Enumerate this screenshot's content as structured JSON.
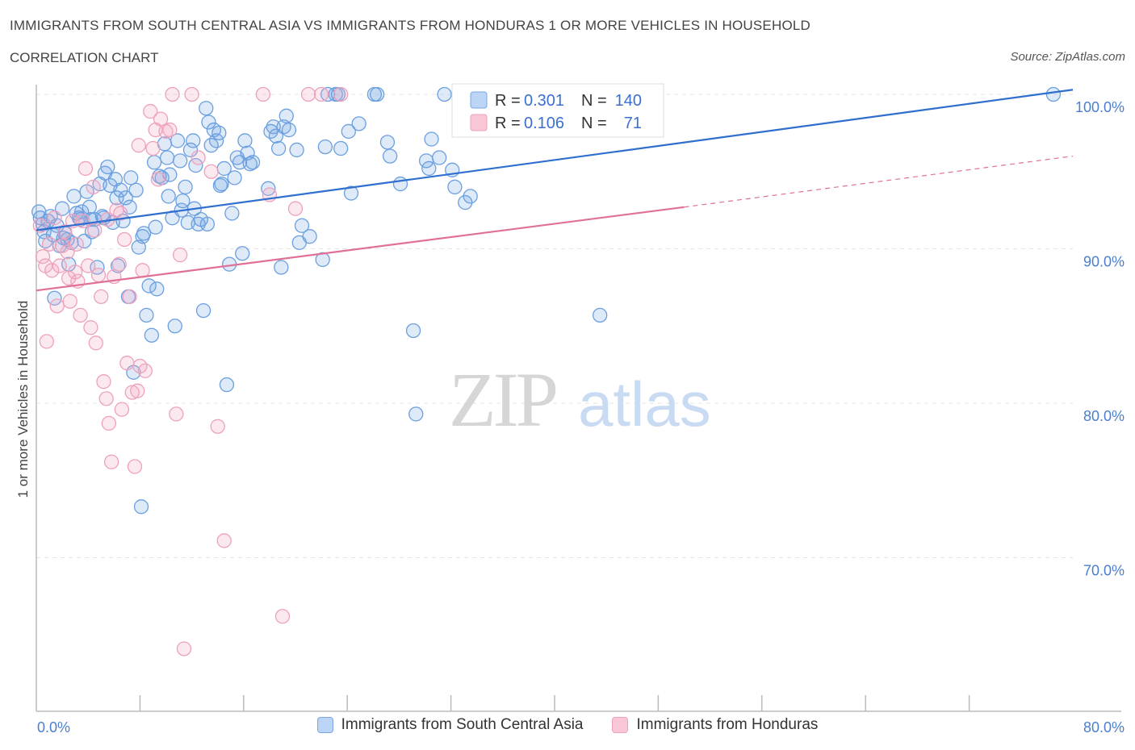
{
  "header": {
    "title": "IMMIGRANTS FROM SOUTH CENTRAL ASIA VS IMMIGRANTS FROM HONDURAS 1 OR MORE VEHICLES IN HOUSEHOLD",
    "subtitle": "CORRELATION CHART",
    "source": "Source: ZipAtlas.com"
  },
  "watermark": {
    "zip": "ZIP",
    "atlas": "atlas"
  },
  "stats": {
    "r_label": "R =",
    "n_label": "N =",
    "rows": [
      {
        "r": "0.301",
        "n": "140"
      },
      {
        "r": "0.106",
        "n": "71"
      }
    ]
  },
  "chart_data": {
    "type": "scatter",
    "ylabel": "1 or more Vehicles in Household",
    "xlim": [
      0,
      80
    ],
    "ylim": [
      60,
      100
    ],
    "x_tick_labels": [
      "0.0%",
      "80.0%"
    ],
    "y_ticks": [
      {
        "value": 100,
        "label": "100.0%"
      },
      {
        "value": 90,
        "label": "90.0%"
      },
      {
        "value": 80,
        "label": "80.0%"
      },
      {
        "value": 70,
        "label": "70.0%"
      }
    ],
    "grid": true,
    "legend_position": "bottom",
    "series": [
      {
        "name": "Immigrants from South Central Asia",
        "color": "#6b9fe0",
        "line_color": "#2f6fcf",
        "trend": {
          "x0": 0,
          "y0": 91.2,
          "x1": 80,
          "y1": 100.3
        },
        "points": [
          [
            0.2,
            92.4
          ],
          [
            0.3,
            92.0
          ],
          [
            0.5,
            91.6
          ],
          [
            0.7,
            90.5
          ],
          [
            0.9,
            91.8
          ],
          [
            1.1,
            92.1
          ],
          [
            1.3,
            90.9
          ],
          [
            1.4,
            86.8
          ],
          [
            1.6,
            91.5
          ],
          [
            1.8,
            90.2
          ],
          [
            2.0,
            92.6
          ],
          [
            2.2,
            91.0
          ],
          [
            2.4,
            90.6
          ],
          [
            2.5,
            89.0
          ],
          [
            2.7,
            90.4
          ],
          [
            2.9,
            93.4
          ],
          [
            3.1,
            92.3
          ],
          [
            3.3,
            92.0
          ],
          [
            3.5,
            92.4
          ],
          [
            3.7,
            90.5
          ],
          [
            3.9,
            93.7
          ],
          [
            4.1,
            92.7
          ],
          [
            4.3,
            91.1
          ],
          [
            4.5,
            91.9
          ],
          [
            4.7,
            88.8
          ],
          [
            4.9,
            94.2
          ],
          [
            5.1,
            92.1
          ],
          [
            5.3,
            94.9
          ],
          [
            5.5,
            95.3
          ],
          [
            5.7,
            94.1
          ],
          [
            5.9,
            91.7
          ],
          [
            6.1,
            94.5
          ],
          [
            6.3,
            88.9
          ],
          [
            6.5,
            93.8
          ],
          [
            6.7,
            91.8
          ],
          [
            6.9,
            93.3
          ],
          [
            7.1,
            86.9
          ],
          [
            7.3,
            94.6
          ],
          [
            7.5,
            82.0
          ],
          [
            7.7,
            93.8
          ],
          [
            7.9,
            90.1
          ],
          [
            8.1,
            73.3
          ],
          [
            8.3,
            91.0
          ],
          [
            8.5,
            85.7
          ],
          [
            8.7,
            87.6
          ],
          [
            8.9,
            84.4
          ],
          [
            9.1,
            95.6
          ],
          [
            9.3,
            87.4
          ],
          [
            9.5,
            94.7
          ],
          [
            9.7,
            94.6
          ],
          [
            9.9,
            96.8
          ],
          [
            10.1,
            95.9
          ],
          [
            10.3,
            94.8
          ],
          [
            10.5,
            92.0
          ],
          [
            10.7,
            85.0
          ],
          [
            10.9,
            97.0
          ],
          [
            11.1,
            95.7
          ],
          [
            11.3,
            93.1
          ],
          [
            11.5,
            94.0
          ],
          [
            11.7,
            91.7
          ],
          [
            11.9,
            96.4
          ],
          [
            12.1,
            97.0
          ],
          [
            12.3,
            95.4
          ],
          [
            12.5,
            91.6
          ],
          [
            12.7,
            91.9
          ],
          [
            12.9,
            86.0
          ],
          [
            13.1,
            99.1
          ],
          [
            13.3,
            98.2
          ],
          [
            13.5,
            96.7
          ],
          [
            13.7,
            97.7
          ],
          [
            13.9,
            97.0
          ],
          [
            14.1,
            97.5
          ],
          [
            14.3,
            94.2
          ],
          [
            14.5,
            95.2
          ],
          [
            14.7,
            81.2
          ],
          [
            14.9,
            89.0
          ],
          [
            15.1,
            92.3
          ],
          [
            15.3,
            94.6
          ],
          [
            15.5,
            95.9
          ],
          [
            15.7,
            95.6
          ],
          [
            15.9,
            89.7
          ],
          [
            16.1,
            97.0
          ],
          [
            16.3,
            96.2
          ],
          [
            16.5,
            95.5
          ],
          [
            16.7,
            95.6
          ],
          [
            17.9,
            93.9
          ],
          [
            18.1,
            97.6
          ],
          [
            18.3,
            97.9
          ],
          [
            18.5,
            97.3
          ],
          [
            18.7,
            96.5
          ],
          [
            18.9,
            88.8
          ],
          [
            19.1,
            97.9
          ],
          [
            19.3,
            98.6
          ],
          [
            19.5,
            97.7
          ],
          [
            20.1,
            96.4
          ],
          [
            20.3,
            90.4
          ],
          [
            20.5,
            91.5
          ],
          [
            21.1,
            90.8
          ],
          [
            22.1,
            89.3
          ],
          [
            22.3,
            96.6
          ],
          [
            22.5,
            100.0
          ],
          [
            23.1,
            100.0
          ],
          [
            23.3,
            100.0
          ],
          [
            23.5,
            96.5
          ],
          [
            24.1,
            97.6
          ],
          [
            24.3,
            93.6
          ],
          [
            26.1,
            100.0
          ],
          [
            26.3,
            100.0
          ],
          [
            27.1,
            96.9
          ],
          [
            27.3,
            96.0
          ],
          [
            28.1,
            94.2
          ],
          [
            29.1,
            84.7
          ],
          [
            29.3,
            79.3
          ],
          [
            30.1,
            95.7
          ],
          [
            30.3,
            95.2
          ],
          [
            30.5,
            97.1
          ],
          [
            31.1,
            95.9
          ],
          [
            31.5,
            100.0
          ],
          [
            32.1,
            95.1
          ],
          [
            32.3,
            94.0
          ],
          [
            33.1,
            93.0
          ],
          [
            33.5,
            93.4
          ],
          [
            34.1,
            100.0
          ],
          [
            43.5,
            85.7
          ],
          [
            78.5,
            100.0
          ],
          [
            0.6,
            91.1
          ],
          [
            2.1,
            90.7
          ],
          [
            3.4,
            91.9
          ],
          [
            4.2,
            91.9
          ],
          [
            5.2,
            92.0
          ],
          [
            6.2,
            93.3
          ],
          [
            7.2,
            92.7
          ],
          [
            8.2,
            90.8
          ],
          [
            9.2,
            91.4
          ],
          [
            10.2,
            93.4
          ],
          [
            11.2,
            92.5
          ],
          [
            12.2,
            92.6
          ],
          [
            13.2,
            91.6
          ],
          [
            14.2,
            94.1
          ],
          [
            24.9,
            98.1
          ]
        ]
      },
      {
        "name": "Immigrants from Honduras",
        "color": "#f4a6c0",
        "line_color": "#e07098",
        "trend": {
          "x0": 0,
          "y0": 87.3,
          "x1": 50,
          "y1": 92.7
        },
        "trend_dashed": {
          "x0": 50,
          "y0": 92.7,
          "x1": 80,
          "y1": 96.0
        },
        "points": [
          [
            0.3,
            91.5
          ],
          [
            0.5,
            89.5
          ],
          [
            0.7,
            88.9
          ],
          [
            0.8,
            84.0
          ],
          [
            1.0,
            90.3
          ],
          [
            1.2,
            88.6
          ],
          [
            1.4,
            92.0
          ],
          [
            1.6,
            86.3
          ],
          [
            1.8,
            88.9
          ],
          [
            2.0,
            90.2
          ],
          [
            2.2,
            91.1
          ],
          [
            2.4,
            89.8
          ],
          [
            2.6,
            86.6
          ],
          [
            2.8,
            91.8
          ],
          [
            3.0,
            88.5
          ],
          [
            3.2,
            87.9
          ],
          [
            3.4,
            85.7
          ],
          [
            3.6,
            91.8
          ],
          [
            3.8,
            95.2
          ],
          [
            4.0,
            88.9
          ],
          [
            4.2,
            84.9
          ],
          [
            4.4,
            94.0
          ],
          [
            4.6,
            83.9
          ],
          [
            4.8,
            88.3
          ],
          [
            5.0,
            86.9
          ],
          [
            5.2,
            81.4
          ],
          [
            5.4,
            80.3
          ],
          [
            5.6,
            78.7
          ],
          [
            5.8,
            76.2
          ],
          [
            6.0,
            88.2
          ],
          [
            6.2,
            92.5
          ],
          [
            6.4,
            89.0
          ],
          [
            6.6,
            79.6
          ],
          [
            6.8,
            90.6
          ],
          [
            7.0,
            82.6
          ],
          [
            7.2,
            86.9
          ],
          [
            7.4,
            80.7
          ],
          [
            7.6,
            75.9
          ],
          [
            7.8,
            80.8
          ],
          [
            8.0,
            82.4
          ],
          [
            8.2,
            88.6
          ],
          [
            8.4,
            82.1
          ],
          [
            9.0,
            96.5
          ],
          [
            9.2,
            97.7
          ],
          [
            9.4,
            94.5
          ],
          [
            10.0,
            97.6
          ],
          [
            10.5,
            100.0
          ],
          [
            10.8,
            79.3
          ],
          [
            11.1,
            89.6
          ],
          [
            11.4,
            64.1
          ],
          [
            12.0,
            100.0
          ],
          [
            14.0,
            78.5
          ],
          [
            14.5,
            71.1
          ],
          [
            17.5,
            100.0
          ],
          [
            18.0,
            93.5
          ],
          [
            19.0,
            66.2
          ],
          [
            20.0,
            92.6
          ],
          [
            21.0,
            100.0
          ],
          [
            22.0,
            100.0
          ],
          [
            23.5,
            100.0
          ],
          [
            8.8,
            98.9
          ],
          [
            9.6,
            98.4
          ],
          [
            10.3,
            97.7
          ],
          [
            7.9,
            96.7
          ],
          [
            12.5,
            95.9
          ],
          [
            13.5,
            95.0
          ],
          [
            6.5,
            92.3
          ],
          [
            5.5,
            91.9
          ],
          [
            4.5,
            91.2
          ],
          [
            3.1,
            90.3
          ],
          [
            2.5,
            88.1
          ]
        ]
      }
    ]
  }
}
